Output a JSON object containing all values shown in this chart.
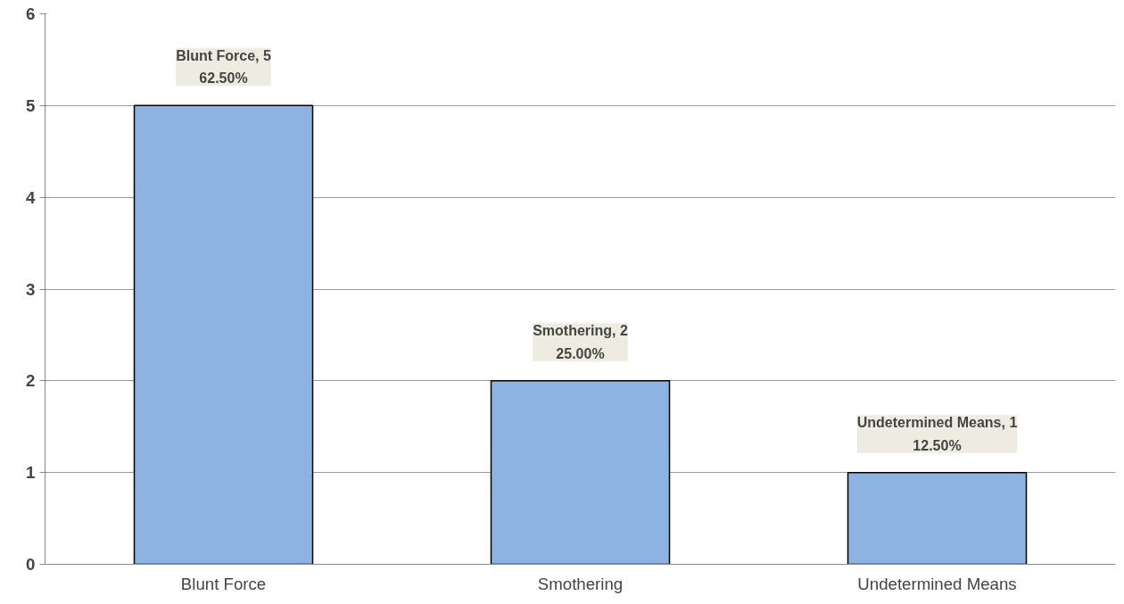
{
  "chart_data": {
    "type": "bar",
    "categories": [
      "Blunt Force",
      "Smothering",
      "Undetermined Means"
    ],
    "values": [
      5,
      2,
      1
    ],
    "color": "#8db3e2",
    "value_labels": [
      "Blunt Force, 5\n62.50%",
      "Smothering, 2\n25.00%",
      "Undetermined Means, 1\n12.50%"
    ],
    "ylim": [
      0,
      6
    ],
    "yticks": [
      0,
      1,
      2,
      3,
      4,
      5,
      6
    ],
    "grid": "y"
  }
}
